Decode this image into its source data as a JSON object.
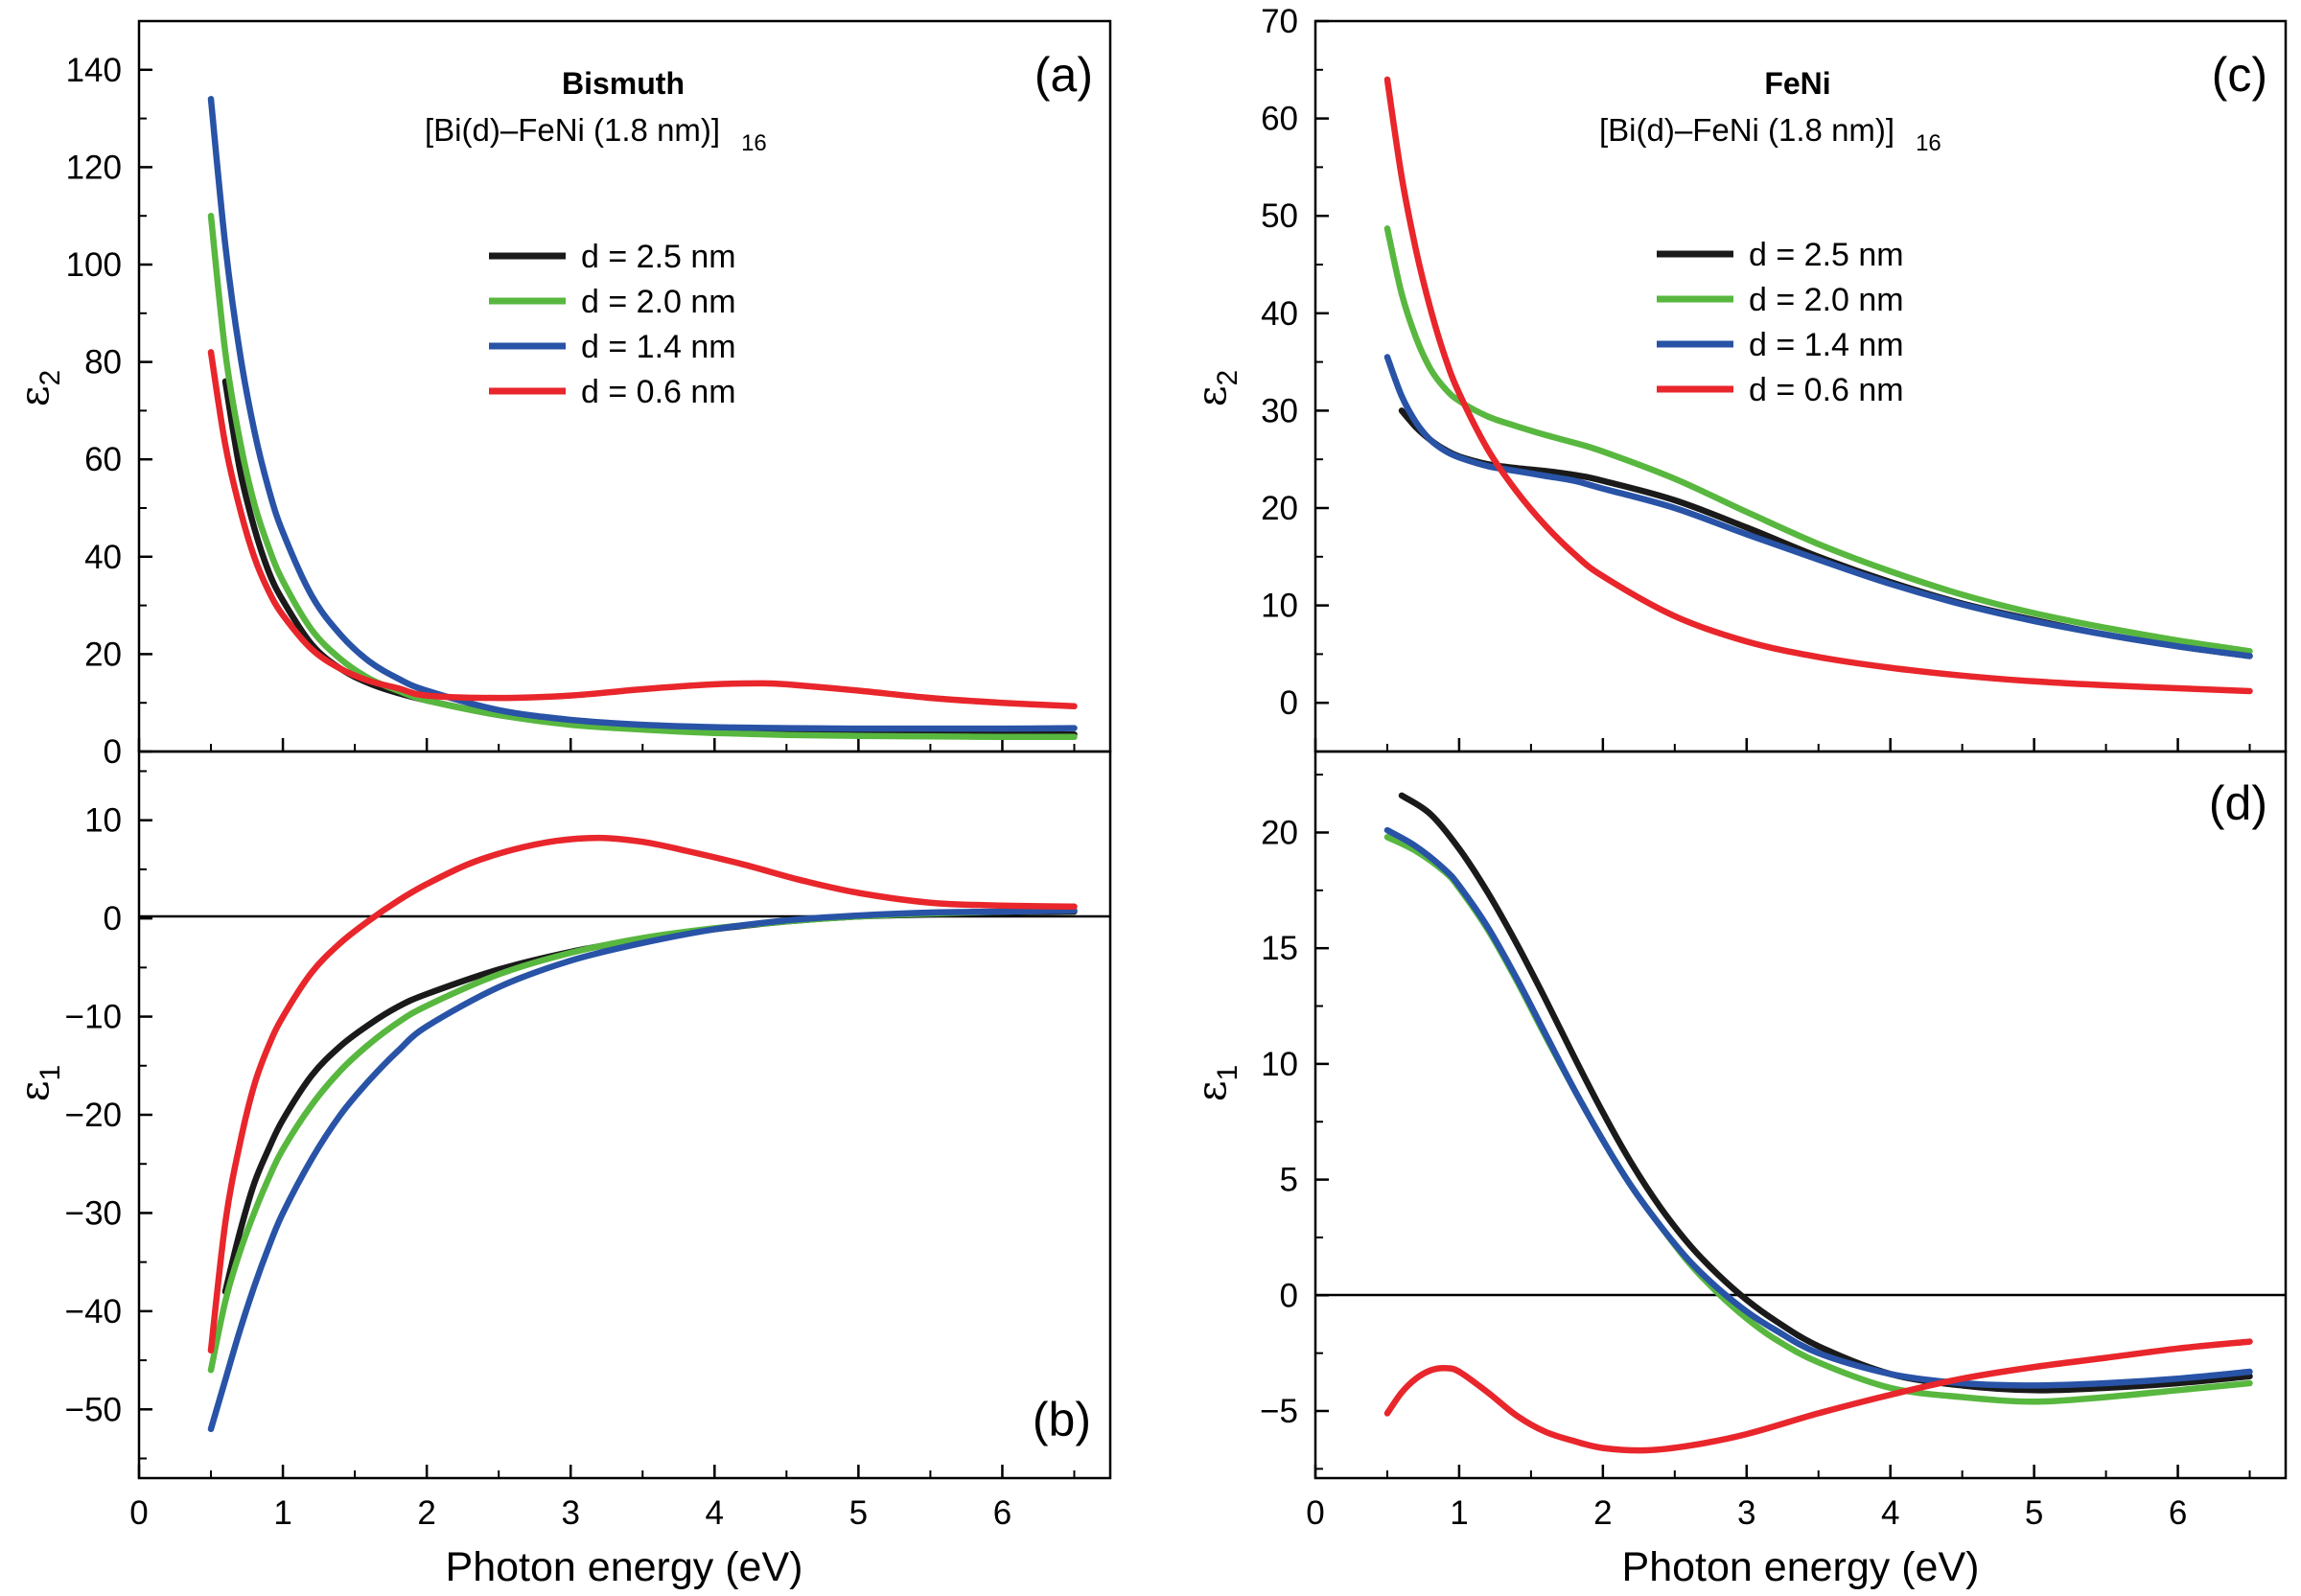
{
  "figure": {
    "xlabel": "Photon energy (eV)",
    "ylabel_eps2_symbol": "ε",
    "ylabel_eps2_sub": "2",
    "ylabel_eps1_symbol": "ε",
    "ylabel_eps1_sub": "1"
  },
  "colors": {
    "d25": "#1a1a1a",
    "d20": "#58b73f",
    "d14": "#2853a6",
    "d06": "#e8262b"
  },
  "legend": {
    "entries": [
      "d = 2.5 nm",
      "d = 2.0 nm",
      "d = 1.4 nm",
      "d = 0.6 nm"
    ]
  },
  "panels": {
    "a": {
      "letter": "(a)",
      "title": "Bismuth",
      "subtitle": "[Bi(d)–FeNi (1.8 nm)]",
      "subtitle_sub": "16"
    },
    "b": {
      "letter": "(b)"
    },
    "c": {
      "letter": "(c)",
      "title": "FeNi",
      "subtitle": "[Bi(d)–FeNi (1.8 nm)]",
      "subtitle_sub": "16"
    },
    "d": {
      "letter": "(d)"
    }
  },
  "chart_data": [
    {
      "id": "a",
      "type": "line",
      "title": "Bismuth",
      "xlabel": "",
      "ylabel": "ε2",
      "xlim": [
        0,
        6.75
      ],
      "ylim": [
        0,
        150
      ],
      "xticks": [
        0,
        1,
        2,
        3,
        4,
        5,
        6
      ],
      "yticks": [
        0,
        20,
        40,
        60,
        80,
        100,
        120,
        140
      ],
      "series": [
        {
          "name": "d = 2.5 nm",
          "color_key": "d25",
          "x": [
            0.6,
            0.7,
            0.8,
            0.9,
            1.0,
            1.2,
            1.4,
            1.6,
            1.8,
            2.0,
            2.5,
            3.0,
            3.5,
            4.0,
            4.5,
            5.0,
            5.5,
            6.0,
            6.5
          ],
          "y": [
            76,
            58,
            46,
            37,
            31,
            22,
            17,
            14,
            12,
            10.5,
            7.5,
            5.8,
            4.8,
            4.2,
            3.9,
            3.7,
            3.6,
            3.5,
            3.5
          ]
        },
        {
          "name": "d = 2.0 nm",
          "color_key": "d20",
          "x": [
            0.5,
            0.6,
            0.7,
            0.8,
            0.9,
            1.0,
            1.2,
            1.4,
            1.6,
            1.8,
            2.0,
            2.5,
            3.0,
            3.5,
            4.0,
            4.5,
            5.0,
            5.5,
            6.0,
            6.5
          ],
          "y": [
            110,
            82,
            64,
            51,
            42,
            35,
            25,
            19,
            15,
            12.5,
            10.5,
            7.5,
            5.5,
            4.5,
            3.8,
            3.4,
            3.2,
            3.1,
            3.0,
            3.0
          ]
        },
        {
          "name": "d = 1.4 nm",
          "color_key": "d14",
          "x": [
            0.5,
            0.6,
            0.7,
            0.8,
            0.9,
            1.0,
            1.2,
            1.4,
            1.6,
            1.8,
            2.0,
            2.5,
            3.0,
            3.5,
            4.0,
            4.5,
            5.0,
            5.5,
            6.0,
            6.5
          ],
          "y": [
            134,
            104,
            82,
            66,
            54,
            45,
            32,
            24,
            18.5,
            15,
            12.5,
            8.5,
            6.5,
            5.5,
            5.0,
            4.8,
            4.7,
            4.7,
            4.7,
            4.8
          ]
        },
        {
          "name": "d = 0.6 nm",
          "color_key": "d06",
          "x": [
            0.5,
            0.6,
            0.7,
            0.8,
            0.9,
            1.0,
            1.2,
            1.4,
            1.6,
            1.8,
            2.0,
            2.5,
            3.0,
            3.5,
            4.0,
            4.3,
            4.5,
            5.0,
            5.5,
            6.0,
            6.5
          ],
          "y": [
            82,
            63,
            50,
            40,
            33,
            28,
            21,
            17,
            14.5,
            13,
            11.5,
            11,
            11.5,
            12.8,
            13.8,
            14,
            13.8,
            12.5,
            11,
            10,
            9.3
          ]
        }
      ]
    },
    {
      "id": "b",
      "type": "line",
      "xlabel": "Photon energy (eV)",
      "ylabel": "ε1",
      "xlim": [
        0,
        6.75
      ],
      "ylim": [
        -57,
        17
      ],
      "xticks": [
        0,
        1,
        2,
        3,
        4,
        5,
        6
      ],
      "yticks": [
        -50,
        -40,
        -30,
        -20,
        -10,
        0,
        10
      ],
      "series": [
        {
          "name": "d = 2.5 nm",
          "color_key": "d25",
          "x": [
            0.6,
            0.7,
            0.8,
            0.9,
            1.0,
            1.2,
            1.4,
            1.6,
            1.8,
            2.0,
            2.5,
            3.0,
            3.5,
            4.0,
            4.5,
            5.0,
            5.5,
            6.0,
            6.5
          ],
          "y": [
            -38,
            -32,
            -27,
            -23.5,
            -20.5,
            -16,
            -13,
            -10.8,
            -9,
            -7.7,
            -5.2,
            -3.4,
            -2.1,
            -1.1,
            -0.3,
            0.2,
            0.4,
            0.6,
            0.7
          ]
        },
        {
          "name": "d = 2.0 nm",
          "color_key": "d20",
          "x": [
            0.5,
            0.6,
            0.7,
            0.8,
            0.9,
            1.0,
            1.2,
            1.4,
            1.6,
            1.8,
            2.0,
            2.5,
            3.0,
            3.5,
            4.0,
            4.5,
            5.0,
            5.5,
            6.0,
            6.5
          ],
          "y": [
            -46,
            -39,
            -34,
            -30,
            -26.5,
            -23.5,
            -19,
            -15.5,
            -12.8,
            -10.6,
            -8.9,
            -5.7,
            -3.5,
            -2.0,
            -1.0,
            -0.3,
            0.2,
            0.5,
            0.7,
            0.8
          ]
        },
        {
          "name": "d = 1.4 nm",
          "color_key": "d14",
          "x": [
            0.5,
            0.6,
            0.7,
            0.8,
            0.9,
            1.0,
            1.2,
            1.4,
            1.6,
            1.8,
            2.0,
            2.5,
            3.0,
            3.5,
            4.0,
            4.5,
            5.0,
            5.5,
            6.0,
            6.5
          ],
          "y": [
            -52,
            -47,
            -42,
            -37.5,
            -33.5,
            -30,
            -24.5,
            -20,
            -16.5,
            -13.5,
            -11,
            -7,
            -4.3,
            -2.5,
            -1.1,
            -0.2,
            0.3,
            0.6,
            0.7,
            0.8
          ]
        },
        {
          "name": "d = 0.6 nm",
          "color_key": "d06",
          "x": [
            0.5,
            0.6,
            0.7,
            0.8,
            0.9,
            1.0,
            1.2,
            1.4,
            1.6,
            1.8,
            2.0,
            2.3,
            2.6,
            2.9,
            3.2,
            3.5,
            3.8,
            4.2,
            4.6,
            5.0,
            5.5,
            6.0,
            6.5
          ],
          "y": [
            -44,
            -31,
            -23,
            -17,
            -13,
            -10,
            -5.5,
            -2.5,
            -0.2,
            1.8,
            3.5,
            5.6,
            7.0,
            7.9,
            8.2,
            7.8,
            6.9,
            5.5,
            3.9,
            2.6,
            1.6,
            1.3,
            1.2
          ]
        }
      ]
    },
    {
      "id": "c",
      "type": "line",
      "title": "FeNi",
      "xlabel": "",
      "ylabel": "ε2",
      "xlim": [
        0,
        6.75
      ],
      "ylim": [
        -5,
        70
      ],
      "xticks": [
        0,
        1,
        2,
        3,
        4,
        5,
        6
      ],
      "yticks": [
        0,
        10,
        20,
        30,
        40,
        50,
        60,
        70
      ],
      "series": [
        {
          "name": "d = 2.5 nm",
          "color_key": "d25",
          "x": [
            0.6,
            0.7,
            0.8,
            0.9,
            1.0,
            1.2,
            1.4,
            1.6,
            1.8,
            2.0,
            2.5,
            3.0,
            3.5,
            4.0,
            4.5,
            5.0,
            5.5,
            6.0,
            6.5
          ],
          "y": [
            30,
            28.3,
            27,
            26,
            25.3,
            24.5,
            24.1,
            23.8,
            23.4,
            22.8,
            20.8,
            18,
            15,
            12.4,
            10.2,
            8.5,
            7.0,
            5.8,
            4.8
          ]
        },
        {
          "name": "d = 2.0 nm",
          "color_key": "d20",
          "x": [
            0.5,
            0.6,
            0.7,
            0.8,
            0.9,
            1.0,
            1.2,
            1.4,
            1.6,
            1.8,
            2.0,
            2.5,
            3.0,
            3.5,
            4.0,
            4.5,
            5.0,
            5.5,
            6.0,
            6.5
          ],
          "y": [
            48.7,
            42,
            37.5,
            34.3,
            32.3,
            31,
            29.4,
            28.4,
            27.5,
            26.7,
            25.8,
            23,
            19.6,
            16.3,
            13.5,
            11.1,
            9.2,
            7.7,
            6.4,
            5.3
          ]
        },
        {
          "name": "d = 1.4 nm",
          "color_key": "d14",
          "x": [
            0.5,
            0.6,
            0.7,
            0.8,
            0.9,
            1.0,
            1.2,
            1.4,
            1.6,
            1.8,
            2.0,
            2.5,
            3.0,
            3.5,
            4.0,
            4.5,
            5.0,
            5.5,
            6.0,
            6.5
          ],
          "y": [
            35.5,
            31.5,
            28.8,
            27,
            25.9,
            25.2,
            24.3,
            23.8,
            23.3,
            22.8,
            22,
            20,
            17.3,
            14.7,
            12.2,
            10.1,
            8.4,
            7.0,
            5.8,
            4.8
          ]
        },
        {
          "name": "d = 0.6 nm",
          "color_key": "d06",
          "x": [
            0.5,
            0.6,
            0.7,
            0.8,
            0.9,
            1.0,
            1.2,
            1.4,
            1.6,
            1.8,
            2.0,
            2.5,
            3.0,
            3.5,
            4.0,
            4.5,
            5.0,
            5.5,
            6.0,
            6.5
          ],
          "y": [
            64,
            54,
            46.5,
            40.5,
            35.6,
            31.8,
            26,
            21.7,
            18.2,
            15.3,
            13,
            8.9,
            6.3,
            4.7,
            3.6,
            2.8,
            2.2,
            1.8,
            1.5,
            1.2
          ]
        }
      ]
    },
    {
      "id": "d",
      "type": "line",
      "xlabel": "Photon energy (eV)",
      "ylabel": "ε1",
      "xlim": [
        0,
        6.75
      ],
      "ylim": [
        -7.9,
        23.5
      ],
      "xticks": [
        0,
        1,
        2,
        3,
        4,
        5,
        6
      ],
      "yticks": [
        -5,
        0,
        5,
        10,
        15,
        20
      ],
      "series": [
        {
          "name": "d = 2.5 nm",
          "color_key": "d25",
          "x": [
            0.6,
            0.8,
            1.0,
            1.2,
            1.4,
            1.6,
            1.8,
            2.0,
            2.2,
            2.4,
            2.6,
            2.8,
            3.0,
            3.2,
            3.5,
            4.0,
            4.5,
            5.0,
            5.5,
            6.0,
            6.5
          ],
          "y": [
            21.6,
            20.8,
            19.3,
            17.4,
            15.2,
            12.8,
            10.3,
            7.9,
            5.7,
            3.8,
            2.2,
            0.9,
            -0.2,
            -1.1,
            -2.2,
            -3.4,
            -3.9,
            -4.1,
            -4.0,
            -3.8,
            -3.5
          ]
        },
        {
          "name": "d = 2.0 nm",
          "color_key": "d20",
          "x": [
            0.5,
            0.7,
            0.9,
            1.0,
            1.2,
            1.4,
            1.6,
            1.8,
            2.0,
            2.2,
            2.4,
            2.6,
            2.8,
            3.0,
            3.2,
            3.5,
            4.0,
            4.5,
            5.0,
            5.5,
            6.0,
            6.5
          ],
          "y": [
            19.8,
            19.2,
            18.3,
            17.6,
            15.8,
            13.6,
            11.2,
            8.9,
            6.7,
            4.7,
            3.0,
            1.4,
            0.1,
            -1.0,
            -1.9,
            -2.9,
            -4.0,
            -4.4,
            -4.6,
            -4.4,
            -4.1,
            -3.8
          ]
        },
        {
          "name": "d = 1.4 nm",
          "color_key": "d14",
          "x": [
            0.5,
            0.7,
            0.9,
            1.0,
            1.2,
            1.4,
            1.6,
            1.8,
            2.0,
            2.2,
            2.4,
            2.6,
            2.8,
            3.0,
            3.2,
            3.5,
            4.0,
            4.5,
            5.0,
            5.5,
            6.0,
            6.5
          ],
          "y": [
            20.1,
            19.4,
            18.4,
            17.7,
            15.9,
            13.7,
            11.3,
            8.9,
            6.7,
            4.7,
            3.0,
            1.5,
            0.3,
            -0.7,
            -1.5,
            -2.5,
            -3.4,
            -3.8,
            -3.9,
            -3.8,
            -3.6,
            -3.3
          ]
        },
        {
          "name": "d = 0.6 nm",
          "color_key": "d06",
          "x": [
            0.5,
            0.6,
            0.7,
            0.8,
            0.9,
            1.0,
            1.2,
            1.4,
            1.6,
            1.8,
            2.0,
            2.3,
            2.6,
            3.0,
            3.5,
            4.0,
            4.5,
            5.0,
            5.5,
            6.0,
            6.5
          ],
          "y": [
            -5.1,
            -4.2,
            -3.6,
            -3.25,
            -3.15,
            -3.3,
            -4.2,
            -5.2,
            -5.9,
            -6.3,
            -6.6,
            -6.7,
            -6.5,
            -6.0,
            -5.1,
            -4.3,
            -3.6,
            -3.1,
            -2.7,
            -2.3,
            -2.0
          ]
        }
      ]
    }
  ]
}
